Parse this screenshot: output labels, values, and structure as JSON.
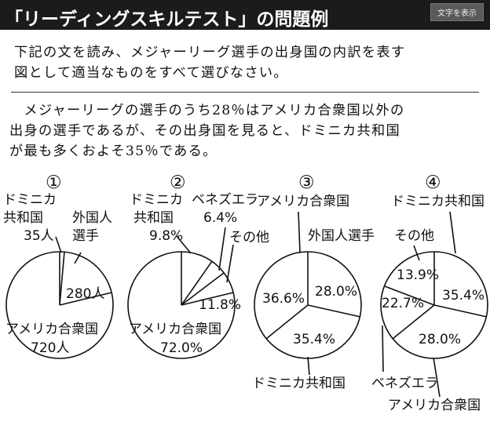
{
  "header": {
    "title": "「リーディングスキルテスト」の問題例",
    "toggle_label": "文字を表示"
  },
  "question": {
    "line1": "下記の文を読み、メジャーリーグ選手の出身国の内訳を表す",
    "line2": "図として適当なものをすべて選びなさい。"
  },
  "passage": {
    "line1": "　メジャーリーグの選手のうち28％はアメリカ合衆国以外の",
    "line2": "出身の選手であるが、その出身国を見ると、ドミニカ共和国",
    "line3": "が最も多くおよそ35％である。"
  },
  "charts": [
    {
      "number": "①",
      "labels": {
        "dominican_1": "ドミニカ",
        "dominican_2": "共和国",
        "dominican_value": "35人",
        "foreign_1": "外国人",
        "foreign_2": "選手",
        "foreign_value": "280人",
        "usa": "アメリカ合衆国",
        "usa_value": "720人"
      }
    },
    {
      "number": "②",
      "labels": {
        "dominican_1": "ドミニカ",
        "dominican_2": "共和国",
        "dominican_value": "9.8%",
        "venezuela": "ベネズエラ",
        "venezuela_value": "6.4%",
        "other": "その他",
        "other_value": "11.8%",
        "usa": "アメリカ合衆国",
        "usa_value": "72.0%"
      }
    },
    {
      "number": "③",
      "labels": {
        "usa": "アメリカ合衆国",
        "usa_value": "36.6%",
        "foreign": "外国人選手",
        "foreign_value": "28.0%",
        "dominican": "ドミニカ共和国",
        "dominican_value": "35.4%"
      }
    },
    {
      "number": "④",
      "labels": {
        "dominican": "ドミニカ共和国",
        "dominican_value": "35.4%",
        "other": "その他",
        "other_value": "13.9%",
        "venezuela": "ベネズエラ",
        "venezuela_value": "22.7%",
        "usa": "アメリカ合衆国",
        "usa_value": "28.0%"
      }
    }
  ]
}
